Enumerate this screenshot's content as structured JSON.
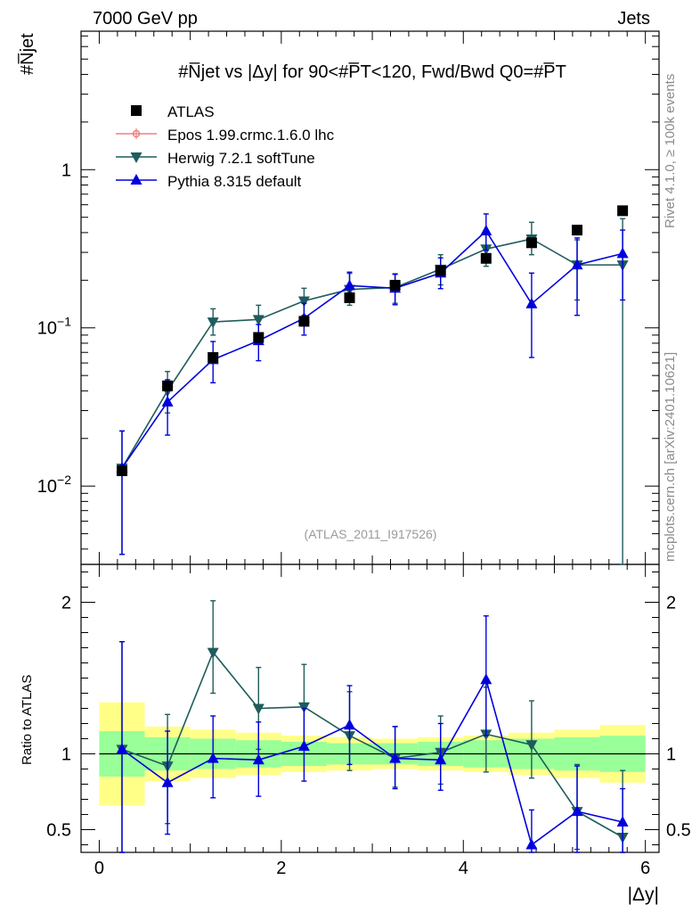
{
  "header": {
    "left": "7000 GeV pp",
    "right": "Jets"
  },
  "side_labels": {
    "rivet": "Rivet 4.1.0, ≥ 100k events",
    "mcplots": "mcplots.cern.ch [arXiv:2401.10621]"
  },
  "y_label_top": "#N̅jet",
  "y_label_bottom": "Ratio to ATLAS",
  "x_label": "|Δy|",
  "colors": {
    "atlas": "#000000",
    "epos": "#f08080",
    "herwig": "#1f5c5c",
    "pythia": "#0000dd",
    "band_inner": "#99ff99",
    "band_outer": "#ffff88"
  },
  "chart_data": [
    {
      "type": "scatter",
      "title": "#N̅jet vs |Δy| for 90<#P̅T<120, Fwd/Bwd Q0=#P̅T",
      "watermark": "(ATLAS_2011_I917526)",
      "xlabel": "|Δy|",
      "ylabel": "#N̅jet",
      "yscale": "log",
      "xlim": [
        -0.2,
        6.15
      ],
      "ylim": [
        0.0032,
        7.5
      ],
      "x_ticks": [
        0,
        2,
        4,
        6
      ],
      "y_tick_labels": [
        {
          "value": 0.01,
          "base": "10",
          "exp": "−2"
        },
        {
          "value": 0.1,
          "base": "10",
          "exp": "−1"
        },
        {
          "value": 1,
          "base": "1",
          "exp": ""
        }
      ],
      "legend": [
        {
          "key": "atlas",
          "label": "ATLAS",
          "marker": "square"
        },
        {
          "key": "epos",
          "label": "Epos 1.99.crmc.1.6.0 lhc",
          "marker": "open-circle"
        },
        {
          "key": "herwig",
          "label": "Herwig 7.2.1 softTune",
          "marker": "triangle-down"
        },
        {
          "key": "pythia",
          "label": "Pythia 8.315 default",
          "marker": "triangle-up"
        }
      ],
      "series": [
        {
          "name": "ATLAS",
          "key": "atlas",
          "x": [
            0.25,
            0.75,
            1.25,
            1.75,
            2.25,
            2.75,
            3.25,
            3.75,
            4.25,
            4.75,
            5.25,
            5.75
          ],
          "y": [
            0.0125,
            0.043,
            0.065,
            0.087,
            0.11,
            0.155,
            0.186,
            0.23,
            0.275,
            0.345,
            0.415,
            0.55
          ]
        },
        {
          "name": "Herwig 7.2.1 softTune",
          "key": "herwig",
          "x": [
            0.25,
            0.75,
            1.25,
            1.75,
            2.25,
            2.75,
            3.25,
            3.75,
            4.25,
            4.75,
            5.25,
            5.75
          ],
          "y": [
            0.013,
            0.04,
            0.109,
            0.113,
            0.148,
            0.175,
            0.18,
            0.235,
            0.315,
            0.365,
            0.25,
            0.25
          ],
          "err_lo": [
            0.0093,
            0.011,
            0.019,
            0.023,
            0.028,
            0.036,
            0.037,
            0.048,
            0.07,
            0.075,
            0.1,
            0.25
          ],
          "err_hi": [
            0.0093,
            0.013,
            0.023,
            0.026,
            0.03,
            0.046,
            0.04,
            0.055,
            0.085,
            0.1,
            0.11,
            0.24
          ]
        },
        {
          "name": "Pythia 8.315 default",
          "key": "pythia",
          "x": [
            0.25,
            0.75,
            1.25,
            1.75,
            2.25,
            2.75,
            3.25,
            3.75,
            4.25,
            4.75,
            5.25,
            5.75
          ],
          "y": [
            0.013,
            0.034,
            0.063,
            0.083,
            0.115,
            0.185,
            0.178,
            0.222,
            0.41,
            0.142,
            0.25,
            0.295
          ],
          "err_lo": [
            0.0093,
            0.013,
            0.018,
            0.021,
            0.025,
            0.04,
            0.038,
            0.045,
            0.1,
            0.077,
            0.13,
            0.145
          ],
          "err_hi": [
            0.0093,
            0.013,
            0.019,
            0.022,
            0.028,
            0.04,
            0.04,
            0.055,
            0.115,
            0.08,
            0.12,
            0.12
          ]
        }
      ]
    },
    {
      "type": "scatter",
      "title": "Ratio to ATLAS",
      "ylabel": "Ratio to ATLAS",
      "xlabel": "|Δy|",
      "xlim": [
        -0.2,
        6.15
      ],
      "ylim": [
        0.35,
        2.25
      ],
      "x_ticks": [
        0,
        2,
        4,
        6
      ],
      "y_ticks": [
        0.5,
        1,
        2
      ],
      "y_tick_labels": [
        "0.5",
        "1",
        "2"
      ],
      "bands": {
        "x_edges": [
          0,
          0.5,
          1,
          1.5,
          2,
          2.5,
          3,
          3.5,
          4,
          4.5,
          5,
          5.5,
          6
        ],
        "inner_lo": [
          0.85,
          0.89,
          0.9,
          0.91,
          0.92,
          0.93,
          0.93,
          0.92,
          0.91,
          0.9,
          0.89,
          0.88
        ],
        "inner_hi": [
          1.15,
          1.11,
          1.1,
          1.09,
          1.08,
          1.07,
          1.07,
          1.08,
          1.09,
          1.1,
          1.11,
          1.12
        ],
        "outer_lo": [
          0.66,
          0.82,
          0.84,
          0.86,
          0.88,
          0.89,
          0.9,
          0.89,
          0.88,
          0.86,
          0.84,
          0.81
        ],
        "outer_hi": [
          1.34,
          1.18,
          1.16,
          1.14,
          1.12,
          1.11,
          1.1,
          1.11,
          1.12,
          1.14,
          1.16,
          1.19
        ]
      },
      "series": [
        {
          "name": "Herwig 7.2.1 softTune",
          "key": "herwig",
          "x": [
            0.25,
            0.75,
            1.25,
            1.75,
            2.25,
            2.75,
            3.25,
            3.75,
            4.25,
            4.75,
            5.25,
            5.75
          ],
          "y": [
            1.03,
            0.92,
            1.67,
            1.3,
            1.31,
            1.12,
            0.97,
            1.01,
            1.13,
            1.06,
            0.62,
            0.45
          ],
          "err_lo": [
            0.74,
            0.38,
            0.27,
            0.27,
            0.25,
            0.23,
            0.19,
            0.21,
            0.25,
            0.22,
            0.25,
            0.45
          ],
          "err_hi": [
            0.71,
            0.34,
            0.34,
            0.27,
            0.28,
            0.29,
            0.21,
            0.24,
            0.31,
            0.29,
            0.31,
            0.44
          ]
        },
        {
          "name": "Pythia 8.315 default",
          "key": "pythia",
          "x": [
            0.25,
            0.75,
            1.25,
            1.75,
            2.25,
            2.75,
            3.25,
            3.75,
            4.25,
            4.75,
            5.25,
            5.75
          ],
          "y": [
            1.03,
            0.81,
            0.97,
            0.96,
            1.05,
            1.19,
            0.97,
            0.96,
            1.49,
            0.4,
            0.62,
            0.55
          ],
          "err_lo": [
            0.74,
            0.34,
            0.26,
            0.24,
            0.23,
            0.26,
            0.2,
            0.2,
            0.37,
            0.22,
            0.32,
            0.27
          ],
          "err_hi": [
            0.71,
            0.34,
            0.28,
            0.25,
            0.25,
            0.26,
            0.21,
            0.24,
            0.42,
            0.23,
            0.3,
            0.22
          ]
        }
      ]
    }
  ]
}
